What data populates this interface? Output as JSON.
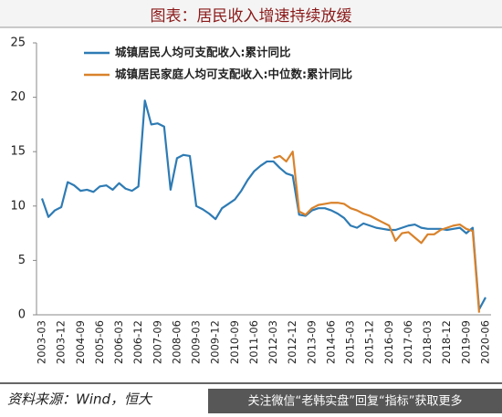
{
  "chart_data": {
    "type": "line",
    "title": "图表：居民收入增速持续放缓",
    "source": "资料来源：Wind，恒大",
    "watermark": "关注微信“老韩实盘”回复“指标”获取更多",
    "legend": "upper left",
    "categories": [
      "2003-03",
      null,
      null,
      "2003-12",
      null,
      null,
      "2004-09",
      null,
      null,
      "2005-06",
      null,
      null,
      "2006-03",
      null,
      null,
      "2006-12",
      null,
      null,
      "2007-09",
      null,
      null,
      "2008-06",
      null,
      null,
      "2009-03",
      null,
      null,
      "2009-12",
      null,
      null,
      "2010-09",
      null,
      null,
      "2011-06",
      null,
      null,
      "2012-03",
      null,
      null,
      "2012-12",
      null,
      null,
      "2013-09",
      null,
      null,
      "2014-06",
      null,
      null,
      "2015-03",
      null,
      null,
      "2015-12",
      null,
      null,
      "2016-09",
      null,
      null,
      "2017-06",
      null,
      null,
      "2018-03",
      null,
      null,
      "2018-12",
      null,
      null,
      "2019-09",
      null,
      null,
      "2020-06"
    ],
    "series": [
      {
        "name": "城镇居民人均可支配收入:累计同比",
        "color": "#2e7bb4",
        "values": [
          10.7,
          9.0,
          9.6,
          9.9,
          12.2,
          11.9,
          11.4,
          11.5,
          11.3,
          11.8,
          11.9,
          11.5,
          12.1,
          11.6,
          11.4,
          11.8,
          19.7,
          17.5,
          17.6,
          17.3,
          11.5,
          14.4,
          14.7,
          14.6,
          10.0,
          9.7,
          9.3,
          8.8,
          9.8,
          10.2,
          10.6,
          11.4,
          12.4,
          13.2,
          13.7,
          14.1,
          14.1,
          13.5,
          13.0,
          12.8,
          9.2,
          9.1,
          9.6,
          9.8,
          9.8,
          9.6,
          9.3,
          8.9,
          8.2,
          8.0,
          8.4,
          8.2,
          8.0,
          7.9,
          7.8,
          7.8,
          8.0,
          8.2,
          8.3,
          8.0,
          7.9,
          7.9,
          7.9,
          7.8,
          7.9,
          8.0,
          7.5,
          8.0,
          0.5,
          1.6
        ]
      },
      {
        "name": "城镇居民家庭人均可支配收入:中位数:累计同比",
        "color": "#d9822b",
        "values": [
          null,
          null,
          null,
          null,
          null,
          null,
          null,
          null,
          null,
          null,
          null,
          null,
          null,
          null,
          null,
          null,
          null,
          null,
          null,
          null,
          null,
          null,
          null,
          null,
          null,
          null,
          null,
          null,
          null,
          null,
          null,
          null,
          null,
          null,
          null,
          null,
          14.4,
          14.6,
          14.1,
          15.0,
          9.5,
          9.2,
          9.8,
          10.1,
          10.2,
          10.3,
          10.3,
          10.2,
          9.8,
          9.6,
          9.3,
          9.1,
          8.8,
          8.5,
          8.2,
          6.8,
          7.5,
          7.6,
          7.1,
          6.6,
          7.4,
          7.4,
          7.8,
          8.0,
          8.2,
          8.3,
          7.9,
          7.7,
          0.2,
          null
        ]
      }
    ],
    "ylim": [
      0,
      25
    ],
    "yticks": [
      0,
      5,
      10,
      15,
      20,
      25
    ],
    "grid": false
  }
}
